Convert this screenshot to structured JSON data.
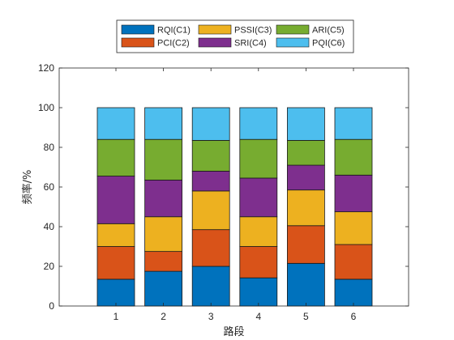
{
  "chart_data": {
    "type": "bar",
    "stacked": true,
    "categories": [
      "1",
      "2",
      "3",
      "4",
      "5",
      "6"
    ],
    "xlabel": "路段",
    "ylabel": "频率/%",
    "ylim": [
      0,
      120
    ],
    "yticks": [
      0,
      20,
      40,
      60,
      80,
      100,
      120
    ],
    "grid": false,
    "legend": "top",
    "series": [
      {
        "name": "RQI(C1)",
        "color": "#0072BD",
        "values": [
          13.5,
          17.5,
          20.0,
          14.2,
          21.5,
          13.5
        ]
      },
      {
        "name": "PCI(C2)",
        "color": "#D95319",
        "values": [
          16.5,
          10.0,
          18.5,
          15.8,
          19.0,
          17.5
        ]
      },
      {
        "name": "PSSI(C3)",
        "color": "#EDB120",
        "values": [
          11.5,
          17.5,
          19.5,
          15.0,
          18.0,
          16.5
        ]
      },
      {
        "name": "SRI(C4)",
        "color": "#7E2F8E",
        "values": [
          24.0,
          18.5,
          10.0,
          19.5,
          12.5,
          18.5
        ]
      },
      {
        "name": "ARI(C5)",
        "color": "#77AC30",
        "values": [
          18.5,
          20.5,
          15.5,
          19.5,
          12.5,
          18.0
        ]
      },
      {
        "name": "PQI(C6)",
        "color": "#4DBEEE",
        "values": [
          16.0,
          16.0,
          16.5,
          16.0,
          16.5,
          16.0
        ]
      }
    ]
  }
}
